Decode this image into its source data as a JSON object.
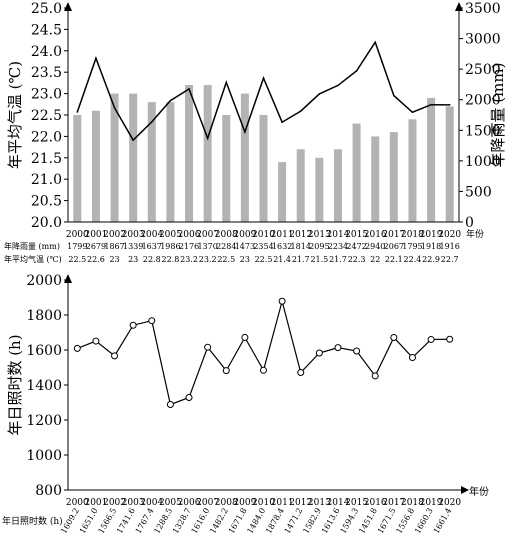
{
  "chart_data": [
    {
      "type": "bar+line",
      "years": [
        "2000",
        "2001",
        "2002",
        "2003",
        "2004",
        "2005",
        "2006",
        "2007",
        "2008",
        "2009",
        "2010",
        "2011",
        "2012",
        "2013",
        "2014",
        "2015",
        "2016",
        "2017",
        "2018",
        "2019",
        "2020"
      ],
      "x_unit_label": "年份",
      "left_axis": {
        "label": "年平均气温 (℃)",
        "ylim": [
          20.0,
          25.0
        ],
        "ticks": [
          "20.0",
          "20.5",
          "21.0",
          "21.5",
          "22.0",
          "22.5",
          "23.0",
          "23.5",
          "24.0",
          "24.5",
          "25.0"
        ]
      },
      "right_axis": {
        "label": "年降雨量 (mm)",
        "ylim": [
          0,
          3500
        ],
        "ticks": [
          "0",
          "500",
          "1000",
          "1500",
          "2000",
          "2500",
          "3000",
          "3500"
        ]
      },
      "series": [
        {
          "name": "年平均气温 (℃)",
          "kind": "bar",
          "axis": "left",
          "color": "#b3b3b3",
          "values": [
            22.5,
            22.6,
            23,
            23,
            22.8,
            22.8,
            23.2,
            23.2,
            22.5,
            23,
            22.5,
            21.4,
            21.7,
            21.5,
            21.7,
            22.3,
            22,
            22.1,
            22.4,
            22.9,
            22.7
          ]
        },
        {
          "name": "年降雨量 (mm)",
          "kind": "line",
          "axis": "right",
          "color": "#000000",
          "values": [
            1799,
            2679,
            1867,
            1339,
            1637,
            1986,
            2176,
            1370,
            2284,
            1473,
            2354,
            1632,
            1814,
            2095,
            2234,
            2472,
            2940,
            2067,
            1795,
            1918,
            1916
          ]
        }
      ],
      "table_rows": [
        {
          "label": "年降雨量 (mm)",
          "values": [
            "1799",
            "2679",
            "1867",
            "1339",
            "1637",
            "1986",
            "2176",
            "1370",
            "2284",
            "1473",
            "2354",
            "1632",
            "1814",
            "2095",
            "2234",
            "2472",
            "2940",
            "2067",
            "1795",
            "1918",
            "1916"
          ]
        },
        {
          "label": "年平均气温 (℃)",
          "values": [
            "22.5",
            "22.6",
            "23",
            "23",
            "22.8",
            "22.8",
            "23.2",
            "23.2",
            "22.5",
            "23",
            "22.5",
            "21.4",
            "21.7",
            "21.5",
            "21.7",
            "22.3",
            "22",
            "22.1",
            "22.4",
            "22.9",
            "22.7"
          ]
        }
      ]
    },
    {
      "type": "line",
      "years": [
        "2000",
        "2001",
        "2002",
        "2003",
        "2004",
        "2005",
        "2006",
        "2007",
        "2008",
        "2009",
        "2010",
        "2011",
        "2012",
        "2013",
        "2014",
        "2015",
        "2016",
        "2017",
        "2018",
        "2019",
        "2020"
      ],
      "x_unit_label": "年份",
      "y_axis": {
        "label": "年日照时数 (h)",
        "ylim": [
          800,
          2000
        ],
        "ticks": [
          "800",
          "1000",
          "1200",
          "1400",
          "1600",
          "1800",
          "2000"
        ]
      },
      "series": [
        {
          "name": "年日照时数 (h)",
          "values": [
            1609.2,
            1651.0,
            1566.5,
            1741.6,
            1767.4,
            1288.5,
            1328.7,
            1616.0,
            1482.2,
            1671.8,
            1484.0,
            1878.4,
            1471.2,
            1582.9,
            1613.6,
            1594.3,
            1451.8,
            1671.5,
            1556.8,
            1660.3,
            1661.4
          ]
        }
      ],
      "value_labels": [
        "1609.2",
        "1651.0",
        "1566.5",
        "1741.6",
        "1767.4",
        "1288.5",
        "1328.7",
        "1616.0",
        "1482.2",
        "1671.8",
        "1484.0",
        "1878.4",
        "1471.2",
        "1582.9",
        "1613.6",
        "1594.3",
        "1451.8",
        "1671.5",
        "1556.8",
        "1660.3",
        "1661.4"
      ],
      "row_label": "年日照时数 (h)"
    }
  ]
}
